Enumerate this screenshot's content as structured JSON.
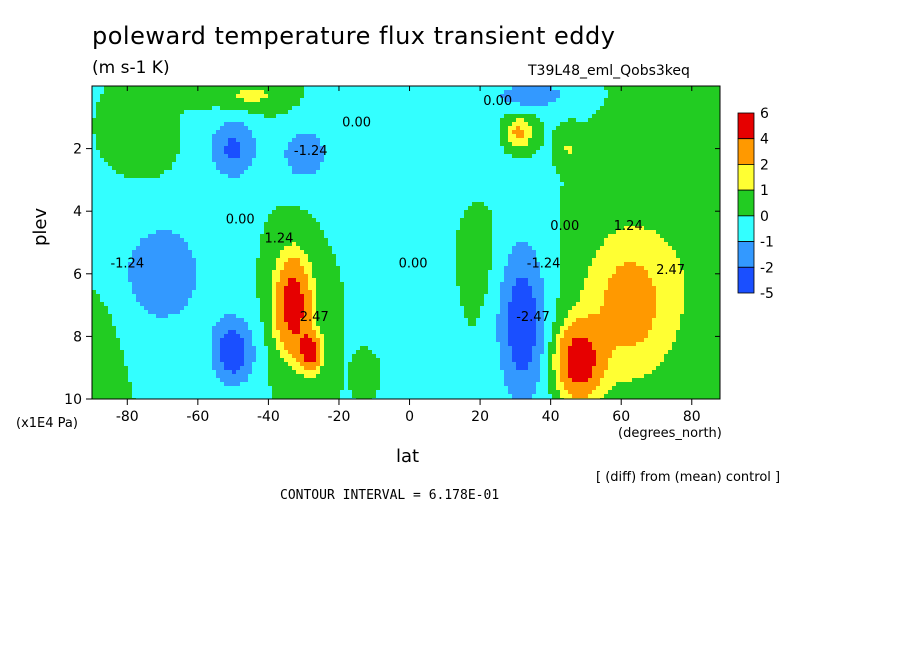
{
  "title": "poleward temperature flux transient eddy",
  "units": "(m s-1 K)",
  "run_label": "T39L48_eml_Qobs3keq",
  "contour_interval": "CONTOUR INTERVAL = 6.178E-01",
  "diff_note": "[ (diff) from (mean) control ]",
  "chart_data": {
    "type": "heatmap",
    "title": "poleward temperature flux transient eddy",
    "xlabel": "lat",
    "x_units": "(degrees_north)",
    "ylabel": "plev",
    "y_units": "(x1E4 Pa)",
    "xlim": [
      -90,
      88
    ],
    "ylim": [
      10,
      0
    ],
    "x_ticks": [
      -80,
      -60,
      -40,
      -20,
      0,
      20,
      40,
      60,
      80
    ],
    "x_tick_labels": [
      "-80",
      "-60",
      "-40",
      "-20",
      "0",
      "20",
      "40",
      "60",
      "80"
    ],
    "y_ticks": [
      2,
      4,
      6,
      8,
      10
    ],
    "y_tick_labels": [
      "2",
      "4",
      "6",
      "8",
      "10"
    ],
    "colorbar": {
      "levels": [
        "6",
        "4",
        "2",
        "1",
        "0",
        "-1",
        "-2",
        "-5"
      ],
      "colors": [
        "#e60000",
        "#ff9900",
        "#ffff33",
        "#22cc22",
        "#33ffff",
        "#3399ff",
        "#1a4fff"
      ]
    },
    "contour_labels": [
      {
        "text": "0.00",
        "lat": 25,
        "plev": 0.6
      },
      {
        "text": "0.00",
        "lat": -15,
        "plev": 1.3
      },
      {
        "text": "-1.24",
        "lat": -28,
        "plev": 2.2
      },
      {
        "text": "0.00",
        "lat": -48,
        "plev": 4.4
      },
      {
        "text": "1.24",
        "lat": -37,
        "plev": 5.0
      },
      {
        "text": "2.47",
        "lat": -27,
        "plev": 7.5
      },
      {
        "text": "-1.24",
        "lat": -80,
        "plev": 5.8
      },
      {
        "text": "0.00",
        "lat": 1,
        "plev": 5.8
      },
      {
        "text": "0.00",
        "lat": 44,
        "plev": 4.6
      },
      {
        "text": "-1.24",
        "lat": 38,
        "plev": 5.8
      },
      {
        "text": "-2.47",
        "lat": 35,
        "plev": 7.5
      },
      {
        "text": "1.24",
        "lat": 62,
        "plev": 4.6
      },
      {
        "text": "2.47",
        "lat": 74,
        "plev": 6.0
      }
    ],
    "features": [
      {
        "lat": -33,
        "plev": 7.0,
        "value": 5.5,
        "wlat": 5,
        "wplev": 1.5
      },
      {
        "lat": -28,
        "plev": 8.5,
        "value": 5.0,
        "wlat": 3,
        "wplev": 0.6
      },
      {
        "lat": 48,
        "plev": 8.8,
        "value": 5.5,
        "wlat": 6,
        "wplev": 1.1
      },
      {
        "lat": 62,
        "plev": 7.0,
        "value": 2.6,
        "wlat": 13,
        "wplev": 2.4
      },
      {
        "lat": 32,
        "plev": 7.6,
        "value": -2.8,
        "wlat": 7,
        "wplev": 2.6
      },
      {
        "lat": -50,
        "plev": 8.5,
        "value": -2.8,
        "wlat": 6,
        "wplev": 1.1
      },
      {
        "lat": -70,
        "plev": 6.0,
        "value": -1.6,
        "wlat": 14,
        "wplev": 2.0
      },
      {
        "lat": -50,
        "plev": 2.0,
        "value": -2.2,
        "wlat": 7,
        "wplev": 1.0
      },
      {
        "lat": -30,
        "plev": 2.2,
        "value": -1.8,
        "wlat": 6,
        "wplev": 0.8
      },
      {
        "lat": 31,
        "plev": 1.5,
        "value": 2.5,
        "wlat": 4,
        "wplev": 0.5
      },
      {
        "lat": 45,
        "plev": 2.0,
        "value": 1.1,
        "wlat": 3,
        "wplev": 0.5
      },
      {
        "lat": 35,
        "plev": 0.3,
        "value": -1.8,
        "wlat": 10,
        "wplev": 0.4
      },
      {
        "lat": -45,
        "plev": 0.3,
        "value": 1.3,
        "wlat": 10,
        "wplev": 0.5
      },
      {
        "lat": 5,
        "plev": 5.8,
        "value": -0.8,
        "wlat": 9,
        "wplev": 3.0
      },
      {
        "lat": -12,
        "plev": 9.2,
        "value": 1.0,
        "wlat": 2,
        "wplev": 0.4
      },
      {
        "lat": -75,
        "plev": 2.0,
        "value": 0.7,
        "wlat": 6,
        "wplev": 0.8
      },
      {
        "lat": 18,
        "plev": 5.5,
        "value": 0.7,
        "wlat": 6,
        "wplev": 1.6
      },
      {
        "lat": 90,
        "plev": 4.0,
        "value": 0.8,
        "wlat": 20,
        "wplev": 5.0
      },
      {
        "lat": -88,
        "plev": 8.5,
        "value": 0.6,
        "wlat": 6,
        "wplev": 2.0
      },
      {
        "lat": 0,
        "plev": 1.5,
        "value": -0.8,
        "wlat": 25,
        "wplev": 2.0
      }
    ]
  }
}
